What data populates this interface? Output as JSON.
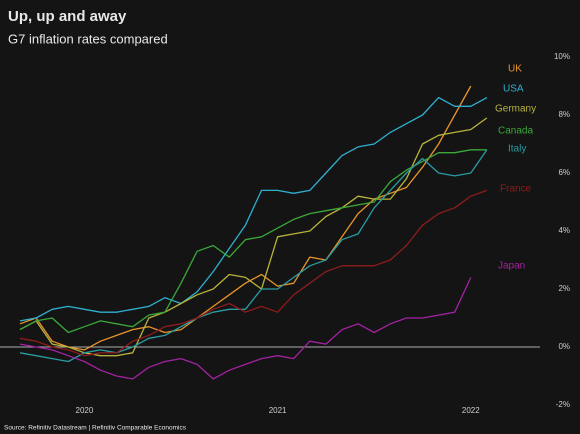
{
  "chart_data": {
    "type": "line",
    "title": "Up, up and away",
    "subtitle": "G7 inflation rates compared",
    "source": "Source: Refinitiv Datastream | Refinitiv Comparable Economics",
    "categories": [
      null,
      null,
      null,
      null,
      "2020",
      null,
      null,
      null,
      null,
      null,
      null,
      null,
      null,
      null,
      null,
      null,
      "2021",
      null,
      null,
      null,
      null,
      null,
      null,
      null,
      null,
      null,
      null,
      null,
      "2022",
      null
    ],
    "ylim": [
      -2,
      10
    ],
    "yticks": [
      {
        "value": -2,
        "label": "-2%"
      },
      {
        "value": 0,
        "label": "0%"
      },
      {
        "value": 2,
        "label": "2%"
      },
      {
        "value": 4,
        "label": "4%"
      },
      {
        "value": 6,
        "label": "6%"
      },
      {
        "value": 8,
        "label": "8%"
      },
      {
        "value": 10,
        "label": "10%"
      }
    ],
    "series": [
      {
        "name": "UK",
        "color": "#e8952b",
        "values": [
          0.8,
          1.0,
          0.2,
          0.0,
          -0.1,
          0.2,
          0.4,
          0.6,
          0.7,
          0.5,
          0.6,
          1.0,
          1.4,
          1.8,
          2.2,
          2.5,
          2.1,
          2.2,
          3.1,
          3.0,
          3.8,
          4.6,
          5.1,
          5.3,
          5.5,
          6.2,
          7.0,
          8.0,
          9.0,
          null
        ]
      },
      {
        "name": "USA",
        "color": "#2fb0d0",
        "values": [
          0.9,
          1.0,
          1.3,
          1.4,
          1.3,
          1.2,
          1.2,
          1.3,
          1.4,
          1.7,
          1.5,
          1.9,
          2.6,
          3.4,
          4.2,
          5.4,
          5.4,
          5.3,
          5.4,
          6.0,
          6.6,
          6.9,
          7.0,
          7.4,
          7.7,
          8.0,
          8.6,
          8.3,
          8.3,
          8.6
        ]
      },
      {
        "name": "Germany",
        "color": "#b8b33a",
        "values": [
          0.6,
          0.9,
          0.1,
          0.0,
          -0.2,
          -0.3,
          -0.3,
          -0.2,
          1.0,
          1.2,
          1.5,
          1.8,
          2.0,
          2.5,
          2.4,
          2.0,
          3.8,
          3.9,
          4.0,
          4.5,
          4.8,
          5.2,
          5.1,
          5.1,
          5.8,
          7.0,
          7.3,
          7.4,
          7.5,
          7.9
        ]
      },
      {
        "name": "Canada",
        "color": "#3aa83a",
        "values": [
          0.6,
          0.9,
          1.0,
          0.5,
          0.7,
          0.9,
          0.8,
          0.7,
          1.1,
          1.2,
          2.2,
          3.3,
          3.5,
          3.1,
          3.7,
          3.8,
          4.1,
          4.4,
          4.6,
          4.7,
          4.8,
          4.9,
          5.0,
          5.7,
          6.1,
          6.4,
          6.7,
          6.7,
          6.8,
          6.8
        ]
      },
      {
        "name": "Italy",
        "color": "#2a9ca3",
        "values": [
          -0.2,
          -0.3,
          -0.4,
          -0.5,
          -0.2,
          -0.1,
          -0.2,
          0.0,
          0.3,
          0.4,
          0.7,
          1.0,
          1.2,
          1.3,
          1.3,
          2.0,
          2.0,
          2.4,
          2.8,
          3.0,
          3.7,
          3.9,
          4.8,
          5.4,
          6.0,
          6.5,
          6.0,
          5.9,
          6.0,
          6.8
        ]
      },
      {
        "name": "France",
        "color": "#8e1c1c",
        "values": [
          0.3,
          0.2,
          0.0,
          -0.1,
          -0.3,
          -0.2,
          -0.2,
          0.2,
          0.4,
          0.7,
          0.8,
          1.0,
          1.3,
          1.5,
          1.2,
          1.4,
          1.2,
          1.8,
          2.2,
          2.6,
          2.8,
          2.8,
          2.8,
          3.0,
          3.5,
          4.2,
          4.6,
          4.8,
          5.2,
          5.4
        ]
      },
      {
        "name": "Japan",
        "color": "#a322a3",
        "values": [
          0.1,
          0.0,
          -0.1,
          -0.3,
          -0.5,
          -0.8,
          -1.0,
          -1.1,
          -0.7,
          -0.5,
          -0.4,
          -0.6,
          -1.1,
          -0.8,
          -0.6,
          -0.4,
          -0.3,
          -0.4,
          0.2,
          0.1,
          0.6,
          0.8,
          0.5,
          0.8,
          1.0,
          1.0,
          1.1,
          1.2,
          2.4,
          null
        ]
      }
    ]
  }
}
